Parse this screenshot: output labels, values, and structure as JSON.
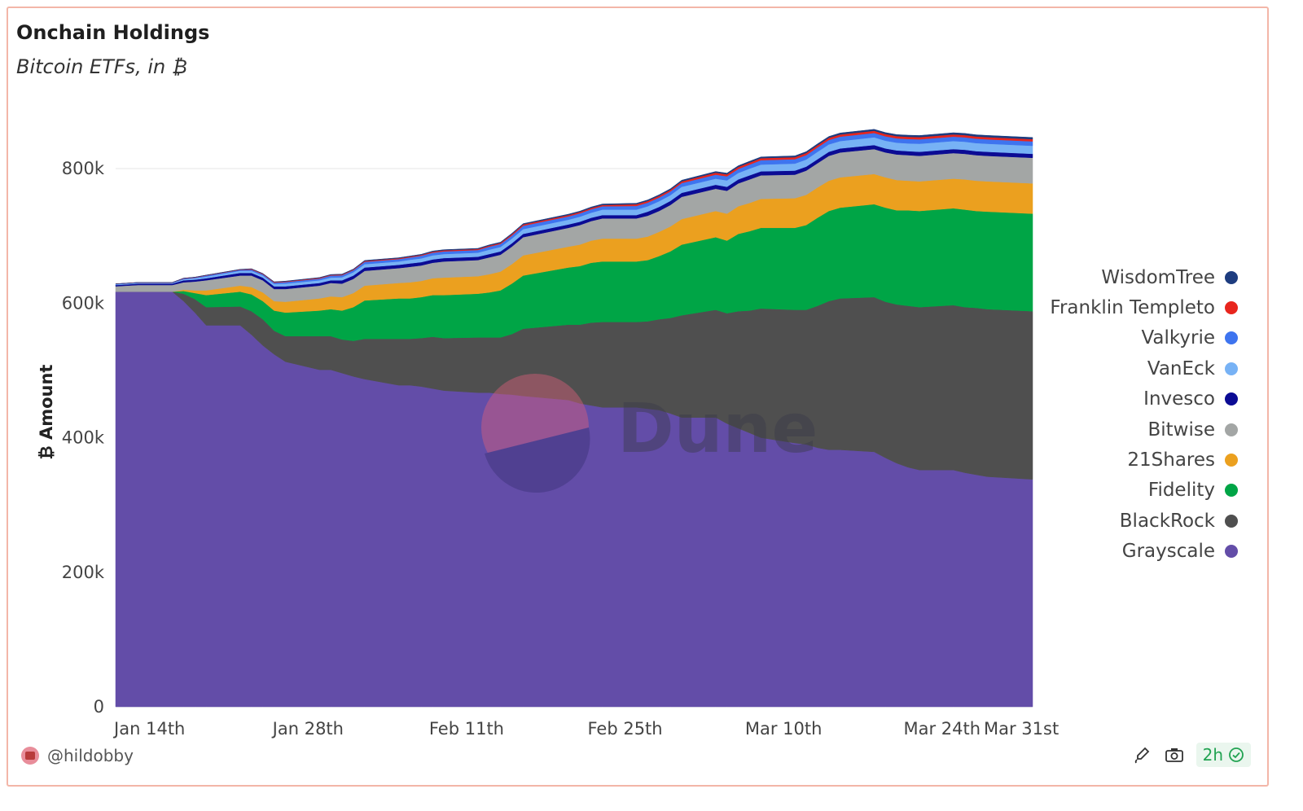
{
  "header": {
    "title": "Onchain Holdings",
    "subtitle": "Bitcoin ETFs, in ₿"
  },
  "footer": {
    "username": "@hildobby",
    "refresh_label": "2h",
    "icons": [
      "brush-icon",
      "camera-icon",
      "check-circle-icon"
    ]
  },
  "watermark": "Dune",
  "chart_data": {
    "type": "area",
    "stacked": true,
    "ylabel": "₿ Amount",
    "ylim": [
      0,
      840000
    ],
    "yticks": [
      0,
      200000,
      400000,
      600000,
      800000
    ],
    "ytick_labels": [
      "0",
      "200k",
      "400k",
      "600k",
      "800k"
    ],
    "xlim": [
      "2024-01-11",
      "2024-04-01"
    ],
    "xticks": [
      "2024-01-14",
      "2024-01-28",
      "2024-02-11",
      "2024-02-25",
      "2024-03-10",
      "2024-03-24",
      "2024-03-31"
    ],
    "xtick_labels": [
      "Jan 14th",
      "Jan 28th",
      "Feb 11th",
      "Feb 25th",
      "Mar 10th",
      "Mar 24th",
      "Mar 31st"
    ],
    "grid": true,
    "legend_position": "right",
    "dates": [
      "2024-01-11",
      "2024-01-12",
      "2024-01-13",
      "2024-01-16",
      "2024-01-17",
      "2024-01-18",
      "2024-01-19",
      "2024-01-22",
      "2024-01-23",
      "2024-01-24",
      "2024-01-25",
      "2024-01-26",
      "2024-01-29",
      "2024-01-30",
      "2024-01-31",
      "2024-02-01",
      "2024-02-02",
      "2024-02-05",
      "2024-02-06",
      "2024-02-07",
      "2024-02-08",
      "2024-02-09",
      "2024-02-12",
      "2024-02-13",
      "2024-02-14",
      "2024-02-15",
      "2024-02-16",
      "2024-02-20",
      "2024-02-21",
      "2024-02-22",
      "2024-02-23",
      "2024-02-26",
      "2024-02-27",
      "2024-02-28",
      "2024-02-29",
      "2024-03-01",
      "2024-03-04",
      "2024-03-05",
      "2024-03-06",
      "2024-03-07",
      "2024-03-08",
      "2024-03-11",
      "2024-03-12",
      "2024-03-13",
      "2024-03-14",
      "2024-03-15",
      "2024-03-18",
      "2024-03-19",
      "2024-03-20",
      "2024-03-21",
      "2024-03-22",
      "2024-03-25",
      "2024-03-26",
      "2024-03-27",
      "2024-03-28",
      "2024-04-01"
    ],
    "series": [
      {
        "name": "Grayscale",
        "color": "#634da8",
        "values": [
          617000,
          617000,
          617000,
          617000,
          603000,
          586000,
          567000,
          567000,
          553000,
          537000,
          524000,
          513000,
          501000,
          501000,
          496000,
          491000,
          487000,
          478000,
          478000,
          476000,
          473000,
          470000,
          467000,
          467000,
          465000,
          464000,
          462000,
          456000,
          451000,
          448000,
          445000,
          445000,
          443000,
          441000,
          436000,
          430000,
          430000,
          421000,
          414000,
          407000,
          400000,
          392000,
          390000,
          385000,
          382000,
          382000,
          379000,
          370000,
          362000,
          356000,
          352000,
          352000,
          348000,
          345000,
          342000,
          338000
        ]
      },
      {
        "name": "BlackRock",
        "color": "#4f4f4f",
        "values": [
          0,
          0,
          0,
          0,
          11000,
          20000,
          27000,
          28000,
          35000,
          39000,
          35000,
          38000,
          50000,
          50000,
          50000,
          53000,
          60000,
          69000,
          69000,
          72000,
          77000,
          78000,
          82000,
          82000,
          84000,
          90000,
          100000,
          112000,
          117000,
          123000,
          127000,
          127000,
          130000,
          135000,
          142000,
          152000,
          160000,
          164000,
          174000,
          182000,
          192000,
          198000,
          200000,
          211000,
          221000,
          225000,
          230000,
          232000,
          236000,
          240000,
          242000,
          245000,
          246000,
          248000,
          249000,
          250000
        ]
      },
      {
        "name": "Fidelity",
        "color": "#00a546",
        "values": [
          0,
          0,
          0,
          0,
          4000,
          9000,
          18000,
          22000,
          25000,
          27000,
          30000,
          35000,
          38000,
          40000,
          43000,
          50000,
          57000,
          60000,
          60000,
          61000,
          62000,
          64000,
          65000,
          67000,
          70000,
          75000,
          79000,
          85000,
          87000,
          89000,
          90000,
          90000,
          91000,
          94000,
          99000,
          105000,
          108000,
          108000,
          115000,
          118000,
          120000,
          122000,
          126000,
          131000,
          134000,
          135000,
          138000,
          140000,
          140000,
          142000,
          143000,
          144000,
          145000,
          144000,
          145000,
          145000
        ]
      },
      {
        "name": "21Shares",
        "color": "#eba01f",
        "values": [
          0,
          0,
          0,
          0,
          2000,
          4000,
          7000,
          9000,
          11000,
          13000,
          14000,
          16000,
          18000,
          19000,
          20000,
          21000,
          22000,
          23000,
          24000,
          24000,
          25000,
          26000,
          26000,
          27000,
          28000,
          29000,
          30000,
          31000,
          32000,
          33000,
          34000,
          34000,
          35000,
          36000,
          37000,
          38000,
          39000,
          40000,
          41000,
          42000,
          43000,
          44000,
          45000,
          45000,
          45000,
          45000,
          45000,
          45000,
          45000,
          44000,
          44000,
          44000,
          45000,
          45000,
          45000,
          45000
        ]
      },
      {
        "name": "Bitwise",
        "color": "#a3a6a5",
        "values": [
          8000,
          9000,
          10000,
          10000,
          11000,
          13000,
          15000,
          15000,
          17000,
          18000,
          18000,
          19000,
          19000,
          20000,
          20000,
          21000,
          22000,
          22000,
          23000,
          23000,
          23000,
          24000,
          24000,
          25000,
          25000,
          26000,
          27000,
          28000,
          29000,
          29000,
          30000,
          30000,
          31000,
          31000,
          32000,
          33000,
          33000,
          34000,
          34000,
          35000,
          35000,
          35000,
          36000,
          36000,
          37000,
          37000,
          37000,
          37000,
          38000,
          38000,
          38000,
          38000,
          38000,
          38000,
          38000,
          38000
        ]
      },
      {
        "name": "Invesco",
        "color": "#0b0b94",
        "values": [
          2000,
          2000,
          2000,
          2000,
          3000,
          3000,
          3000,
          4000,
          4000,
          4000,
          4000,
          4000,
          4000,
          4000,
          5000,
          5000,
          5000,
          5000,
          5000,
          5000,
          5000,
          5000,
          5000,
          5000,
          5000,
          5000,
          5000,
          5000,
          5000,
          5000,
          5000,
          5000,
          6000,
          6000,
          6000,
          6000,
          6000,
          6000,
          6000,
          6000,
          6000,
          6000,
          6000,
          6000,
          6000,
          6000,
          6000,
          6000,
          6000,
          6000,
          6000,
          6000,
          6000,
          6000,
          6000,
          6000
        ]
      },
      {
        "name": "VanEck",
        "color": "#77b2f5",
        "values": [
          1000,
          1000,
          1000,
          1000,
          1500,
          2000,
          2500,
          3000,
          3000,
          3000,
          3500,
          4000,
          4000,
          4000,
          4500,
          5000,
          5000,
          5000,
          5500,
          5500,
          6000,
          6000,
          6000,
          6500,
          6500,
          7000,
          7000,
          7000,
          7500,
          7500,
          8000,
          8000,
          8000,
          8500,
          8500,
          9000,
          9000,
          9500,
          9500,
          10000,
          10000,
          10500,
          10500,
          11000,
          11000,
          11000,
          11500,
          11500,
          11500,
          11500,
          12000,
          12000,
          12000,
          12000,
          12000,
          12000
        ]
      },
      {
        "name": "Valkyrie",
        "color": "#3e74ef",
        "values": [
          500,
          500,
          500,
          500,
          1000,
          1000,
          1500,
          1500,
          2000,
          2000,
          2000,
          2500,
          2500,
          3000,
          3000,
          3000,
          3500,
          3500,
          3500,
          4000,
          4000,
          4000,
          4000,
          4500,
          4500,
          4500,
          5000,
          5000,
          5000,
          5000,
          5000,
          5500,
          5500,
          5500,
          5500,
          5500,
          6000,
          6000,
          6000,
          6000,
          6500,
          6500,
          6500,
          6500,
          6500,
          6500,
          6500,
          6500,
          6500,
          6500,
          6500,
          6500,
          6500,
          6500,
          6500,
          6500
        ]
      },
      {
        "name": "Franklin Templeto",
        "color": "#e8251d",
        "values": [
          200,
          200,
          200,
          200,
          500,
          500,
          500,
          500,
          800,
          800,
          800,
          800,
          1000,
          1000,
          1000,
          1000,
          1200,
          1200,
          1200,
          1200,
          1500,
          1500,
          1500,
          1500,
          1500,
          2000,
          2000,
          2000,
          2000,
          2000,
          2000,
          2500,
          2500,
          2500,
          2500,
          2500,
          3000,
          3000,
          3000,
          3000,
          3000,
          3000,
          3200,
          3200,
          3200,
          3200,
          3200,
          3200,
          3200,
          3300,
          3300,
          3300,
          3300,
          3300,
          3300,
          3300
        ]
      },
      {
        "name": "WisdomTree",
        "color": "#1d3c7f",
        "values": [
          100,
          100,
          100,
          100,
          200,
          200,
          300,
          300,
          400,
          400,
          500,
          500,
          600,
          600,
          700,
          700,
          800,
          800,
          900,
          900,
          1000,
          1000,
          1000,
          1100,
          1100,
          1200,
          1200,
          1300,
          1300,
          1400,
          1400,
          1500,
          1500,
          1600,
          1600,
          1700,
          1700,
          1800,
          1800,
          1900,
          1900,
          2000,
          2000,
          2100,
          2100,
          2200,
          2200,
          2300,
          2300,
          2400,
          2400,
          2500,
          2500,
          2500,
          2500,
          2500
        ]
      }
    ]
  }
}
